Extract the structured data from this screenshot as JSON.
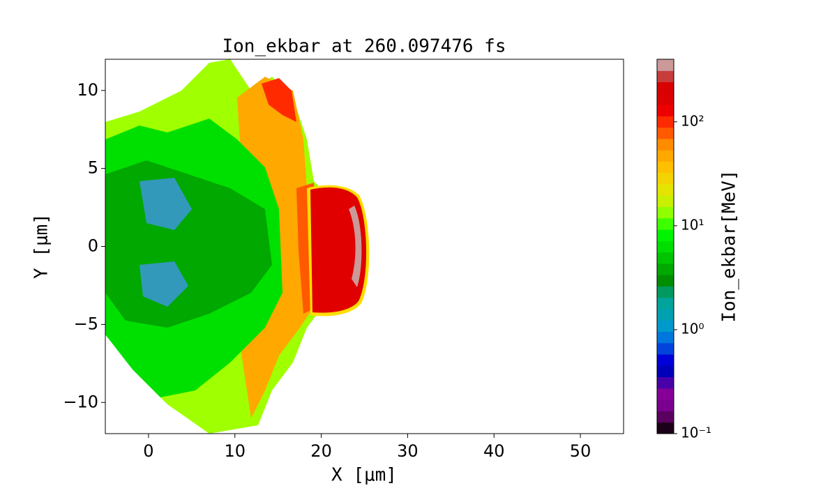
{
  "chart_data": {
    "type": "contour",
    "title": "Ion_ekbar at 260.097476 fs",
    "x_label": "X  [μm]",
    "y_label": "Y  [μm]",
    "xlim": [
      -5,
      55
    ],
    "ylim": [
      -12,
      12
    ],
    "xticks": [
      0,
      10,
      20,
      30,
      40,
      50
    ],
    "yticks": [
      {
        "value": -10,
        "label": "−10"
      },
      {
        "value": -5,
        "label": "−5"
      },
      0,
      5,
      10
    ],
    "colorbar": {
      "label": "Ion_ekbar[MeV]",
      "log_scale": true,
      "lim": [
        0.1,
        400
      ],
      "ticks": [
        {
          "value": 0.1,
          "label": "10⁻¹"
        },
        {
          "value": 1,
          "label": "10⁰"
        },
        {
          "value": 10,
          "label": "10¹"
        },
        {
          "value": 100,
          "label": "10²"
        }
      ],
      "colors": [
        "#1a0018",
        "#5a0060",
        "#7a0090",
        "#860098",
        "#4a00a8",
        "#0000b8",
        "#0000d8",
        "#0044dd",
        "#0077dd",
        "#0099cc",
        "#00a0b0",
        "#00a49a",
        "#009a60",
        "#008e00",
        "#00a800",
        "#00c400",
        "#00de00",
        "#00f400",
        "#3cff00",
        "#90ff00",
        "#c8f000",
        "#e4e400",
        "#f4d400",
        "#ffc000",
        "#ffa800",
        "#ff8c00",
        "#ff5a00",
        "#ff2a00",
        "#ee0000",
        "#dd0000",
        "#d80000",
        "#c83c3c",
        "#cc9999"
      ]
    }
  }
}
